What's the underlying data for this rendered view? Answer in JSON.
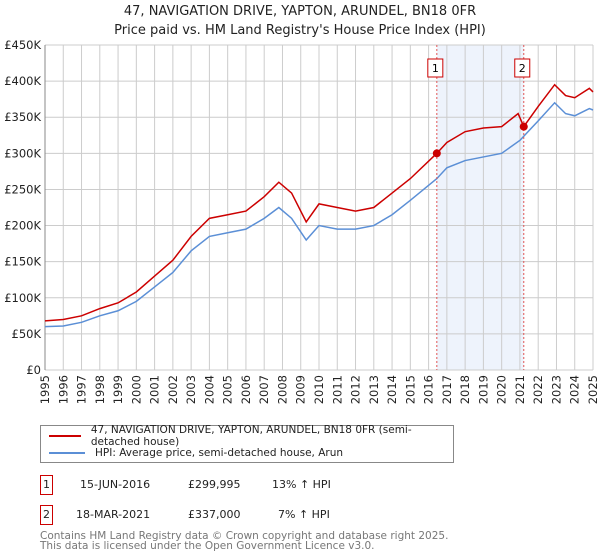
{
  "chart_data": {
    "type": "line",
    "title": "47, NAVIGATION DRIVE, YAPTON, ARUNDEL, BN18 0FR",
    "subtitle": "Price paid vs. HM Land Registry's House Price Index (HPI)",
    "xlim": [
      1995,
      2025
    ],
    "ylim": [
      0,
      450000
    ],
    "y_ticks": [
      0,
      50000,
      100000,
      150000,
      200000,
      250000,
      300000,
      350000,
      400000,
      450000
    ],
    "y_tick_labels": [
      "£0",
      "£50K",
      "£100K",
      "£150K",
      "£200K",
      "£250K",
      "£300K",
      "£350K",
      "£400K",
      "£450K"
    ],
    "x_ticks": [
      "1995",
      "1996",
      "1997",
      "1998",
      "1999",
      "2000",
      "2001",
      "2002",
      "2003",
      "2004",
      "2005",
      "2006",
      "2007",
      "2008",
      "2009",
      "2010",
      "2011",
      "2012",
      "2013",
      "2014",
      "2015",
      "2016",
      "2017",
      "2018",
      "2019",
      "2020",
      "2021",
      "2022",
      "2023",
      "2024",
      "2025"
    ],
    "grid": true,
    "series": [
      {
        "name": "47, NAVIGATION DRIVE, YAPTON, ARUNDEL, BN18 0FR (semi-detached house)",
        "color": "#cc0000",
        "x": [
          1995,
          1996,
          1997,
          1998,
          1999,
          2000,
          2001,
          2002,
          2003,
          2004,
          2005,
          2006,
          2007,
          2007.8,
          2008.5,
          2009.3,
          2010,
          2011,
          2012,
          2013,
          2014,
          2015,
          2016.45,
          2017,
          2018,
          2019,
          2020,
          2020.9,
          2021.21,
          2022,
          2022.9,
          2023.5,
          2024,
          2024.8,
          2025
        ],
        "y": [
          68000,
          70000,
          75000,
          85000,
          93000,
          108000,
          130000,
          152000,
          185000,
          210000,
          215000,
          220000,
          240000,
          260000,
          245000,
          205000,
          230000,
          225000,
          220000,
          225000,
          245000,
          265000,
          299995,
          315000,
          330000,
          335000,
          337000,
          355000,
          337000,
          365000,
          395000,
          380000,
          377000,
          390000,
          385000
        ]
      },
      {
        "name": "HPI: Average price, semi-detached house, Arun",
        "color": "#5b8fd6",
        "x": [
          1995,
          1996,
          1997,
          1998,
          1999,
          2000,
          2001,
          2002,
          2003,
          2004,
          2005,
          2006,
          2007,
          2007.8,
          2008.5,
          2009.3,
          2010,
          2011,
          2012,
          2013,
          2014,
          2015,
          2016.45,
          2017,
          2018,
          2019,
          2020,
          2021,
          2022,
          2022.9,
          2023.5,
          2024,
          2024.8,
          2025
        ],
        "y": [
          60000,
          61000,
          66000,
          75000,
          82000,
          95000,
          115000,
          135000,
          165000,
          185000,
          190000,
          195000,
          210000,
          225000,
          210000,
          180000,
          200000,
          195000,
          195000,
          200000,
          215000,
          235000,
          265000,
          280000,
          290000,
          295000,
          300000,
          318000,
          345000,
          370000,
          355000,
          352000,
          362000,
          360000
        ]
      }
    ],
    "annotations": [
      {
        "label": "1",
        "x": 2016.45,
        "y": 299995
      },
      {
        "label": "2",
        "x": 2021.21,
        "y": 337000
      }
    ],
    "shaded_range": [
      2016.45,
      2021.21
    ]
  },
  "legend": {
    "items": [
      "47, NAVIGATION DRIVE, YAPTON, ARUNDEL, BN18 0FR (semi-detached house)",
      "HPI: Average price, semi-detached house, Arun"
    ]
  },
  "sales": [
    {
      "num": "1",
      "date": "15-JUN-2016",
      "price": "£299,995",
      "hpi": "13% ↑ HPI"
    },
    {
      "num": "2",
      "date": "18-MAR-2021",
      "price": "£337,000",
      "hpi": "7% ↑ HPI"
    }
  ],
  "footer": {
    "line1": "Contains HM Land Registry data © Crown copyright and database right 2025.",
    "line2": "This data is licensed under the Open Government Licence v3.0."
  }
}
